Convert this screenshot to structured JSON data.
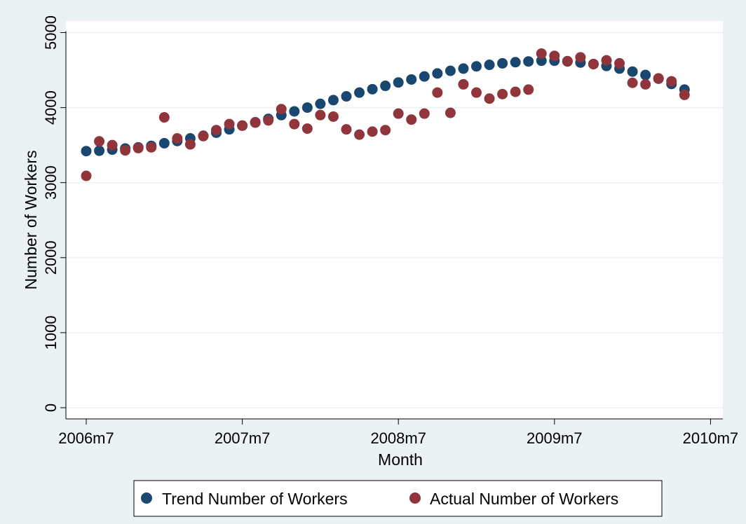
{
  "chart_data": {
    "type": "scatter",
    "xlabel": "Month",
    "ylabel": "Number of Workers",
    "x_tick_labels": [
      "2006m7",
      "2007m7",
      "2008m7",
      "2009m7",
      "2010m7"
    ],
    "y_tick_labels": [
      "0",
      "1000",
      "2000",
      "3000",
      "4000",
      "5000"
    ],
    "ylim": [
      0,
      5000
    ],
    "xlim": [
      "2006m7",
      "2010m7"
    ],
    "grid": "horizontal",
    "legend": "bottom",
    "x": [
      "2006m7",
      "2006m8",
      "2006m9",
      "2006m10",
      "2006m11",
      "2006m12",
      "2007m1",
      "2007m2",
      "2007m3",
      "2007m4",
      "2007m5",
      "2007m6",
      "2007m7",
      "2007m8",
      "2007m9",
      "2007m10",
      "2007m11",
      "2007m12",
      "2008m1",
      "2008m2",
      "2008m3",
      "2008m4",
      "2008m5",
      "2008m6",
      "2008m7",
      "2008m8",
      "2008m9",
      "2008m10",
      "2008m11",
      "2008m12",
      "2009m1",
      "2009m2",
      "2009m3",
      "2009m4",
      "2009m5",
      "2009m6",
      "2009m7",
      "2009m8",
      "2009m9",
      "2009m10",
      "2009m11",
      "2009m12",
      "2010m1",
      "2010m2",
      "2010m3",
      "2010m4",
      "2010m5"
    ],
    "series": [
      {
        "name": "Trend Number of Workers",
        "color": "#1a476f",
        "values": [
          3420,
          3425,
          3440,
          3455,
          3470,
          3490,
          3525,
          3555,
          3590,
          3625,
          3665,
          3710,
          3760,
          3805,
          3850,
          3900,
          3950,
          4000,
          4050,
          4100,
          4150,
          4200,
          4245,
          4290,
          4335,
          4375,
          4415,
          4455,
          4490,
          4520,
          4550,
          4570,
          4590,
          4605,
          4615,
          4625,
          4625,
          4615,
          4600,
          4580,
          4555,
          4520,
          4480,
          4435,
          4385,
          4315,
          4240
        ]
      },
      {
        "name": "Actual Number of Workers",
        "color": "#90353b",
        "values": [
          3090,
          3550,
          3500,
          3430,
          3460,
          3470,
          3870,
          3590,
          3510,
          3620,
          3700,
          3780,
          3760,
          3800,
          3830,
          3980,
          3780,
          3720,
          3900,
          3880,
          3710,
          3640,
          3680,
          3700,
          3920,
          3840,
          3920,
          4200,
          3930,
          4310,
          4200,
          4120,
          4180,
          4210,
          4240,
          4720,
          4690,
          4620,
          4670,
          4580,
          4630,
          4590,
          4330,
          4310,
          4390,
          4350,
          4170
        ]
      }
    ]
  }
}
